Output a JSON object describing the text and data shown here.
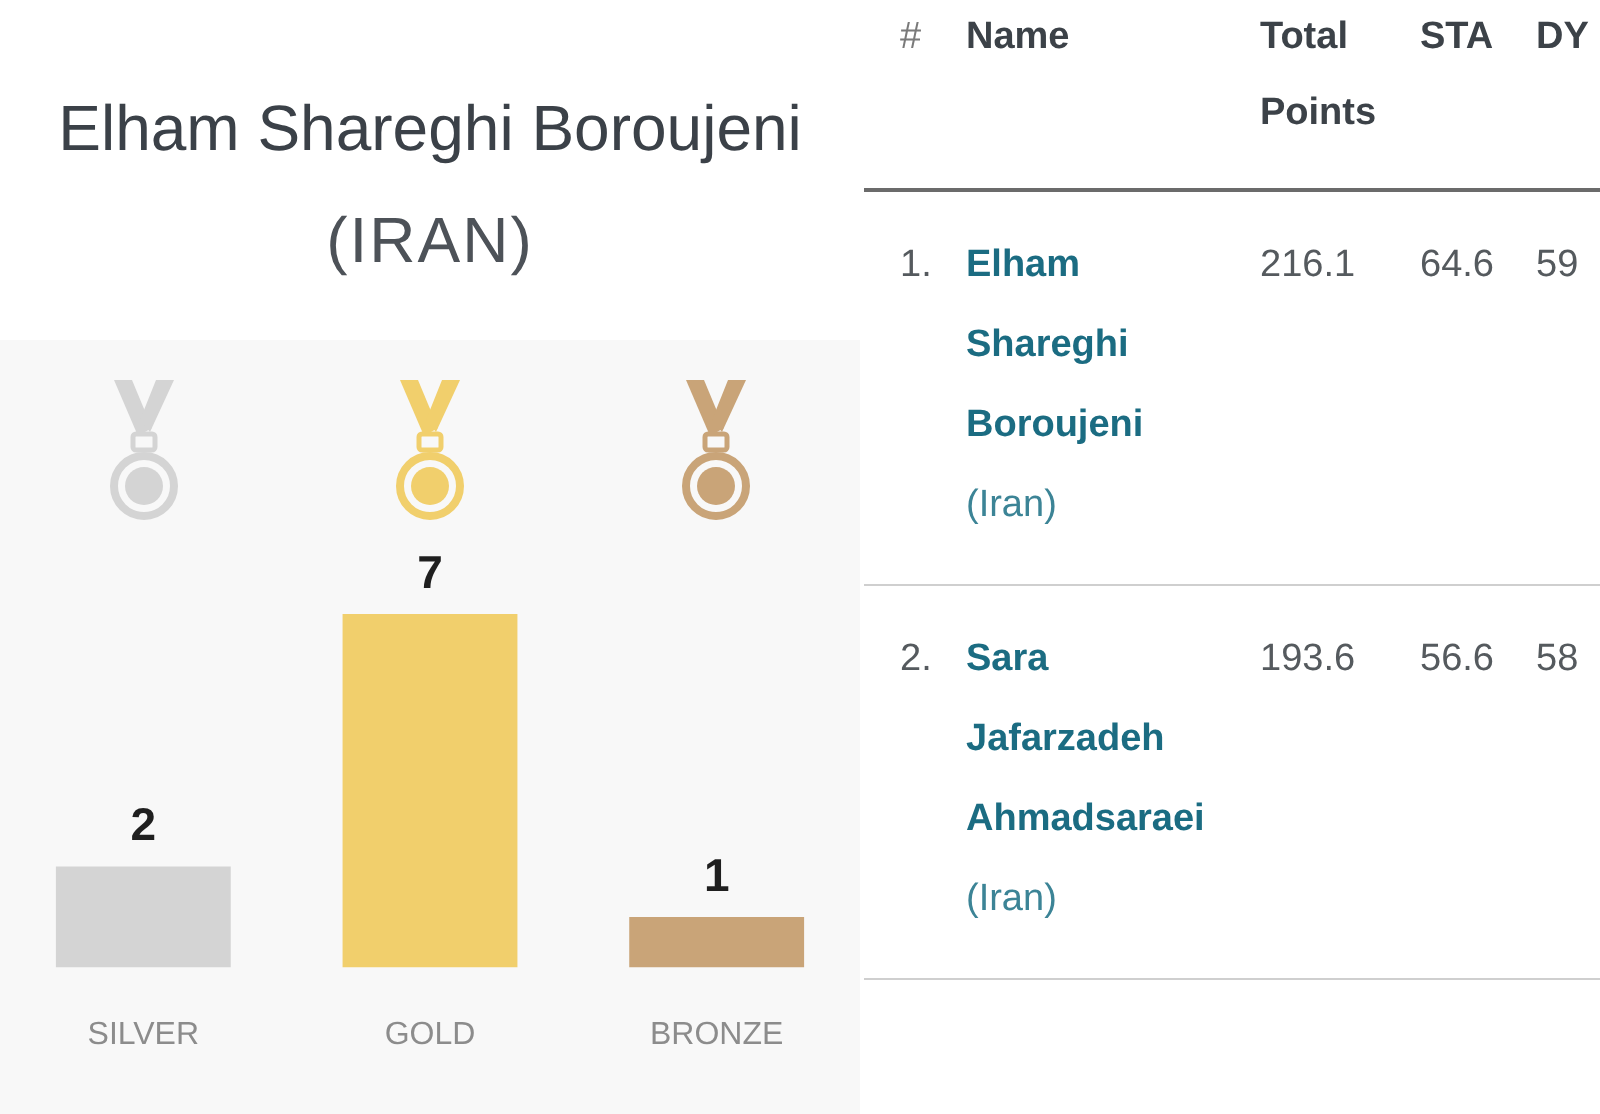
{
  "chart_data": [
    {
      "type": "bar",
      "title": "Elham Shareghi Boroujeni",
      "subtitle": "(IRAN)",
      "categories": [
        "SILVER",
        "GOLD",
        "BRONZE"
      ],
      "values": [
        2,
        7,
        1
      ],
      "colors": [
        "#d4d4d4",
        "#f1cf6c",
        "#c9a478"
      ],
      "data_labels": true,
      "tick_labels": "x"
    },
    {
      "type": "other",
      "categories": [
        "#",
        "Name",
        "Total Points",
        "STA",
        "DY"
      ],
      "cell_labels": [
        [
          "1.",
          [
            "Elham Shareghi Boroujeni",
            "(Iran)"
          ],
          "216.1",
          "64.6",
          "59"
        ],
        [
          "2.",
          [
            "Sara Jafarzadeh Ahmadsaraei",
            "(Iran)"
          ],
          "193.6",
          "56.6",
          "58"
        ]
      ]
    }
  ]
}
